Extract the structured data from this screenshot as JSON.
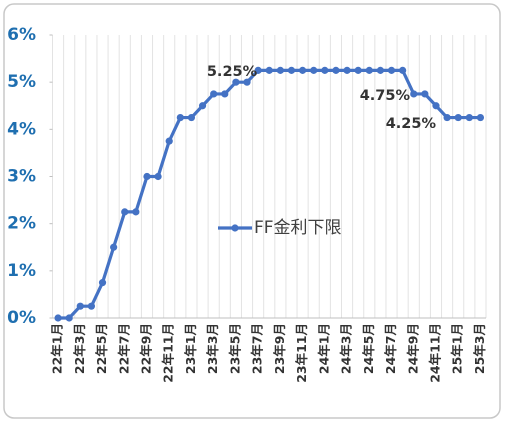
{
  "chart_data": {
    "type": "line",
    "categories": [
      "22年1月",
      null,
      "22年3月",
      null,
      "22年5月",
      null,
      "22年7月",
      null,
      "22年9月",
      null,
      "22年11月",
      null,
      "23年1月",
      null,
      "23年3月",
      null,
      "23年5月",
      null,
      "23年7月",
      null,
      "23年9月",
      null,
      "23年11月",
      null,
      "24年1月",
      null,
      "24年3月",
      null,
      "24年5月",
      null,
      "24年7月",
      null,
      "24年9月",
      null,
      "24年11月",
      null,
      "25年1月",
      null,
      "25年3月"
    ],
    "series": [
      {
        "name": "FF金利下限",
        "color": "#4472c4",
        "values": [
          0,
          0,
          0.25,
          0.25,
          0.75,
          1.5,
          2.25,
          2.25,
          3,
          3,
          3.75,
          4.25,
          4.25,
          4.5,
          4.75,
          4.75,
          5,
          5,
          5.25,
          5.25,
          5.25,
          5.25,
          5.25,
          5.25,
          5.25,
          5.25,
          5.25,
          5.25,
          5.25,
          5.25,
          5.25,
          5.25,
          4.75,
          4.75,
          4.5,
          4.25,
          4.25,
          4.25,
          4.25
        ]
      }
    ],
    "ylim": [
      0,
      6
    ],
    "yticks": [
      {
        "value": 0,
        "label": "0%"
      },
      {
        "value": 1,
        "label": "1%"
      },
      {
        "value": 2,
        "label": "2%"
      },
      {
        "value": 3,
        "label": "3%"
      },
      {
        "value": 4,
        "label": "4%"
      },
      {
        "value": 5,
        "label": "5%"
      },
      {
        "value": 6,
        "label": "6%"
      }
    ],
    "annotations": [
      "5.25%",
      "4.75%",
      "4.25%"
    ],
    "grid": "x",
    "legend": "center"
  }
}
